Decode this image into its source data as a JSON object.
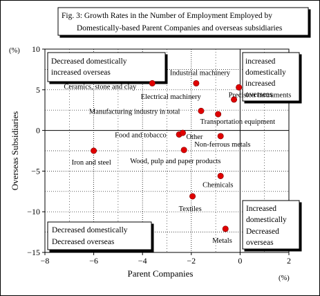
{
  "chart_data": {
    "type": "scatter",
    "title_lines": [
      "Fig. 3: Growth Rates in the Number of Employment Employed by",
      "Domestically-based Parent Companies and overseas subsidiaries"
    ],
    "xlabel": "Parent Companies",
    "ylabel": "Overseas Subsidiaries",
    "x_unit": "(%)",
    "y_unit": "(%)",
    "xlim": [
      -8,
      2
    ],
    "ylim": [
      -15,
      10
    ],
    "x_ticks": [
      -8,
      -6,
      -4,
      -2,
      0,
      2
    ],
    "y_ticks": [
      10,
      5,
      0,
      -5,
      -10,
      -15
    ],
    "grid": true,
    "point_color": "#e00000",
    "points": [
      {
        "label": "Ceramics, stone and clay",
        "x": -3.6,
        "y": 5.8
      },
      {
        "label": "Industrial machinery",
        "x": -1.8,
        "y": 5.8
      },
      {
        "label": "Electrical machinery",
        "x": -0.25,
        "y": 3.8
      },
      {
        "label": "Precision instruments",
        "x": -0.05,
        "y": 5.3
      },
      {
        "label": "Manufacturing industry in total",
        "x": -1.6,
        "y": 2.4
      },
      {
        "label": "Transportation equipment",
        "x": -0.9,
        "y": 2.0
      },
      {
        "label": "Food and tobacco",
        "x": -2.5,
        "y": -0.5
      },
      {
        "label": "Other",
        "x": -2.35,
        "y": -0.3
      },
      {
        "label": "Non-ferrous metals",
        "x": -0.8,
        "y": -0.7
      },
      {
        "label": "Wood, pulp and paper products",
        "x": -2.3,
        "y": -2.4
      },
      {
        "label": "Iron and steel",
        "x": -6.0,
        "y": -2.5
      },
      {
        "label": "Chemicals",
        "x": -0.8,
        "y": -5.6
      },
      {
        "label": "Textiles",
        "x": -1.95,
        "y": -8.1
      },
      {
        "label": "Metals",
        "x": -0.6,
        "y": -12.1
      }
    ],
    "quadrant_notes": [
      {
        "lines": [
          "Decreased domestically",
          "increased overseas"
        ]
      },
      {
        "lines": [
          "increased",
          "domestically",
          "increased",
          "overseas"
        ]
      },
      {
        "lines": [
          "Decreased domestically",
          "Decreased overseas"
        ]
      },
      {
        "lines": [
          "Increased",
          "domestically",
          "Decreased",
          "overseas"
        ]
      }
    ]
  }
}
